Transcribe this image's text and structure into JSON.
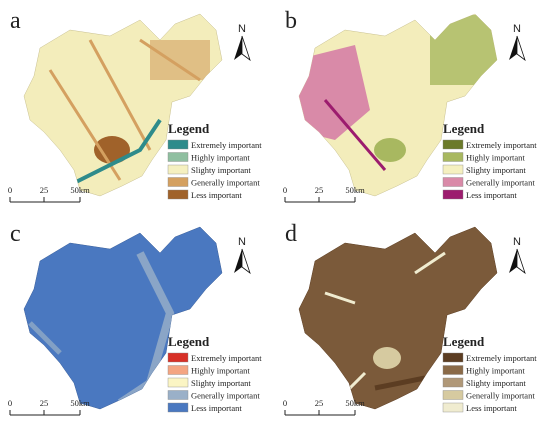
{
  "panels": [
    {
      "label": "a",
      "north": "N",
      "scale": [
        "0",
        "25",
        "50km"
      ],
      "legend": {
        "title": "Legend",
        "items": [
          {
            "text": "Extremely important",
            "color": "#2e8b8b"
          },
          {
            "text": "Highly important",
            "color": "#8fbfa0"
          },
          {
            "text": "Slighty important",
            "color": "#f5f0c0"
          },
          {
            "text": "Generally important",
            "color": "#d4a060"
          },
          {
            "text": "Less important",
            "color": "#a0622a"
          }
        ]
      }
    },
    {
      "label": "b",
      "north": "N",
      "scale": [
        "0",
        "25",
        "50km"
      ],
      "legend": {
        "title": "Legend",
        "items": [
          {
            "text": "Extremely important",
            "color": "#6b7a2a"
          },
          {
            "text": "Highly important",
            "color": "#a8b860"
          },
          {
            "text": "Slighty important",
            "color": "#f5f0c0"
          },
          {
            "text": "Generally important",
            "color": "#d98aa8"
          },
          {
            "text": "Less important",
            "color": "#9c1c6e"
          }
        ]
      }
    },
    {
      "label": "c",
      "north": "N",
      "scale": [
        "0",
        "25",
        "50km"
      ],
      "legend": {
        "title": "Legend",
        "items": [
          {
            "text": "Extremely important",
            "color": "#d73027"
          },
          {
            "text": "Highly important",
            "color": "#f4a582"
          },
          {
            "text": "Slighty important",
            "color": "#fbf5c4"
          },
          {
            "text": "Generally important",
            "color": "#9ab0c8"
          },
          {
            "text": "Less important",
            "color": "#4a78c0"
          }
        ]
      }
    },
    {
      "label": "d",
      "north": "N",
      "scale": [
        "0",
        "25",
        "50km"
      ],
      "legend": {
        "title": "Legend",
        "items": [
          {
            "text": "Extremely important",
            "color": "#5c3d22"
          },
          {
            "text": "Highly important",
            "color": "#8a6a48"
          },
          {
            "text": "Slighty important",
            "color": "#b09878"
          },
          {
            "text": "Generally important",
            "color": "#d6caa0"
          },
          {
            "text": "Less important",
            "color": "#f0ecd0"
          }
        ]
      }
    }
  ]
}
